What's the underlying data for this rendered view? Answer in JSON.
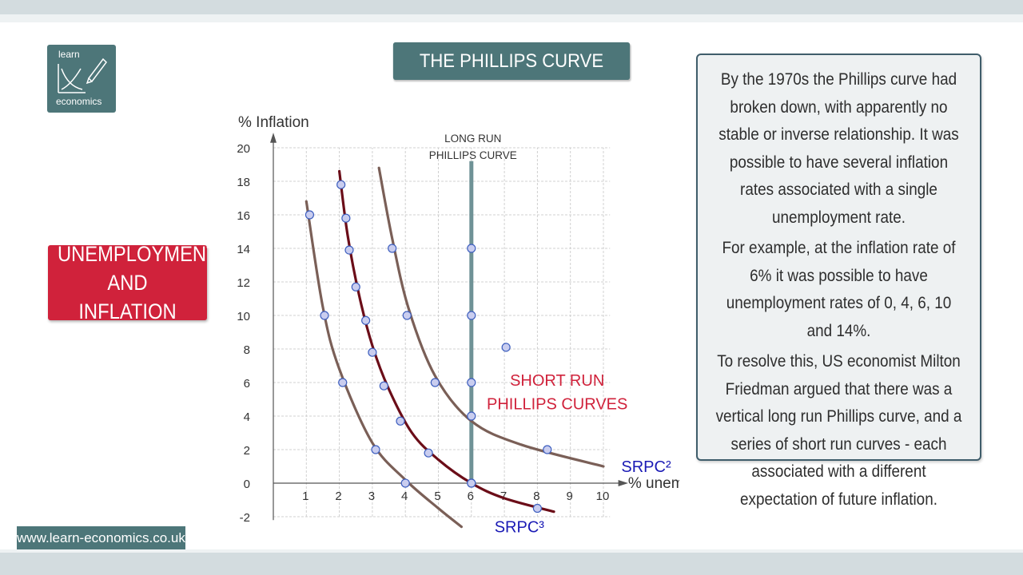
{
  "logo": {
    "line1": "learn",
    "line2": "economics"
  },
  "title": "THE PHILLIPS CURVE",
  "topic": {
    "line1": "UNEMPLOYMENT",
    "line2": "AND INFLATION"
  },
  "textbox": {
    "p1": "By the 1970s the Phillips curve had broken down, with apparently no stable or inverse relationship. It was possible to have several inflation rates associated with a single unemployment rate.",
    "p2": "For example, at the inflation rate of 6% it was possible to have unemployment rates of 0, 4, 6, 10 and 14%.",
    "p3": "To resolve this, US economist Milton Friedman argued that there was a vertical long run Phillips curve, and a series of short run curves - each associated with a different expectation of future inflation."
  },
  "url": "www.learn-economics.co.uk",
  "colors": {
    "teal": "#4d7679",
    "red": "#d0223b",
    "curve_light": "#7a5f57",
    "curve_dark": "#6b0d18",
    "lrpc": "#6f9296",
    "point_fill": "#c9cdef",
    "point_stroke": "#3e5fbf",
    "label_blue": "#1a1ab5"
  },
  "chart_data": {
    "type": "line",
    "ylabel": "% Inflation",
    "xlabel": "% unemployment",
    "xlim": [
      0,
      10
    ],
    "ylim": [
      -2,
      20
    ],
    "x_ticks": [
      "1",
      "2",
      "3",
      "4",
      "5",
      "6",
      "7",
      "8",
      "9",
      "10"
    ],
    "y_ticks": [
      "20",
      "18",
      "16",
      "14",
      "12",
      "10",
      "8",
      "6",
      "4",
      "2",
      "0",
      "-2"
    ],
    "grid": true,
    "lrpc": {
      "x": 6,
      "label_line1": "LONG RUN",
      "label_line2": "PHILLIPS CURVE"
    },
    "srpc_title_line1": "SHORT RUN",
    "srpc_title_line2": "PHILLIPS CURVES",
    "series": [
      {
        "name": "",
        "style": "light",
        "points": [
          [
            1.1,
            16
          ],
          [
            1.55,
            10
          ],
          [
            2.1,
            6
          ],
          [
            3.1,
            2
          ],
          [
            4.0,
            0
          ]
        ],
        "curve": [
          [
            1.0,
            16.8
          ],
          [
            1.5,
            10.5
          ],
          [
            2.0,
            6.8
          ],
          [
            3.0,
            2.4
          ],
          [
            4.0,
            0.2
          ],
          [
            5.0,
            -1.5
          ],
          [
            5.7,
            -2.6
          ]
        ]
      },
      {
        "name": "",
        "style": "dark",
        "points": [
          [
            2.05,
            17.8
          ],
          [
            2.2,
            15.8
          ],
          [
            2.3,
            13.9
          ],
          [
            2.5,
            11.7
          ],
          [
            2.8,
            9.7
          ],
          [
            3.0,
            7.8
          ],
          [
            3.35,
            5.8
          ],
          [
            3.85,
            3.7
          ],
          [
            4.7,
            1.8
          ],
          [
            6.0,
            0
          ],
          [
            8.0,
            -1.5
          ]
        ],
        "curve": [
          [
            2.0,
            18.6
          ],
          [
            2.25,
            14.8
          ],
          [
            2.6,
            11.2
          ],
          [
            3.0,
            8.2
          ],
          [
            3.5,
            5.6
          ],
          [
            4.2,
            3.0
          ],
          [
            5.0,
            1.4
          ],
          [
            6.0,
            0.0
          ],
          [
            7.0,
            -0.9
          ],
          [
            8.5,
            -1.7
          ]
        ]
      },
      {
        "name": "SRPC²",
        "style": "light",
        "points": [
          [
            3.6,
            14
          ],
          [
            4.05,
            10
          ],
          [
            4.9,
            6
          ],
          [
            8.3,
            2
          ]
        ],
        "curve": [
          [
            3.2,
            18.8
          ],
          [
            3.6,
            14.6
          ],
          [
            4.1,
            10.4
          ],
          [
            4.9,
            6.4
          ],
          [
            6.0,
            3.7
          ],
          [
            7.5,
            2.3
          ],
          [
            10.0,
            1.0
          ]
        ]
      },
      {
        "name": "SRPC³",
        "style": "dark",
        "points": [],
        "curve": []
      }
    ],
    "lrpc_points": [
      [
        6,
        14
      ],
      [
        6,
        10
      ],
      [
        6,
        6
      ],
      [
        6,
        4
      ],
      [
        6,
        0
      ]
    ],
    "extra_points": [
      [
        7.05,
        8.1
      ]
    ]
  }
}
